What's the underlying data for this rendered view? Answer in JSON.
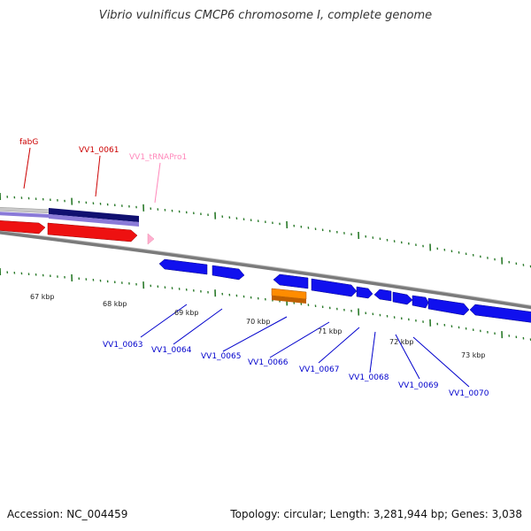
{
  "title": "Vibrio vulnificus CMCP6 chromosome I, complete genome",
  "accession": "Accession: NC_004459",
  "topology": "Topology: circular; Length: 3,281,944 bp; Genes: 3,038",
  "kbp_labels": [
    "67 kbp",
    "68 kbp",
    "69 kbp",
    "70 kbp",
    "71 kbp",
    "72 kbp",
    "73 kbp"
  ],
  "upper_genes": [
    {
      "label": "fabG",
      "color": "#cc0000"
    },
    {
      "label": "VV1_0061",
      "color": "#cc0000"
    },
    {
      "label": "VV1_tRNAPro1",
      "color": "#ff88bb"
    }
  ],
  "lower_genes": [
    {
      "label": "VV1_0063",
      "color": "#0000cc"
    },
    {
      "label": "VV1_0064",
      "color": "#0000cc"
    },
    {
      "label": "VV1_0065",
      "color": "#0000cc"
    },
    {
      "label": "VV1_0066",
      "color": "#0000cc"
    },
    {
      "label": "VV1_0067",
      "color": "#0000cc"
    },
    {
      "label": "VV1_0068",
      "color": "#0000cc"
    },
    {
      "label": "VV1_0069",
      "color": "#0000cc"
    },
    {
      "label": "VV1_0070",
      "color": "#0000cc"
    }
  ],
  "colors": {
    "backbone": "#888888",
    "tick": "#2a7a2a",
    "gene_blue": "#1010ee",
    "gene_red": "#ee1111",
    "gene_orange": "#ff8c00",
    "track_navy": "#101070",
    "track_lavender": "#8a7ad8",
    "trna_pink": "#ffb0d0"
  }
}
